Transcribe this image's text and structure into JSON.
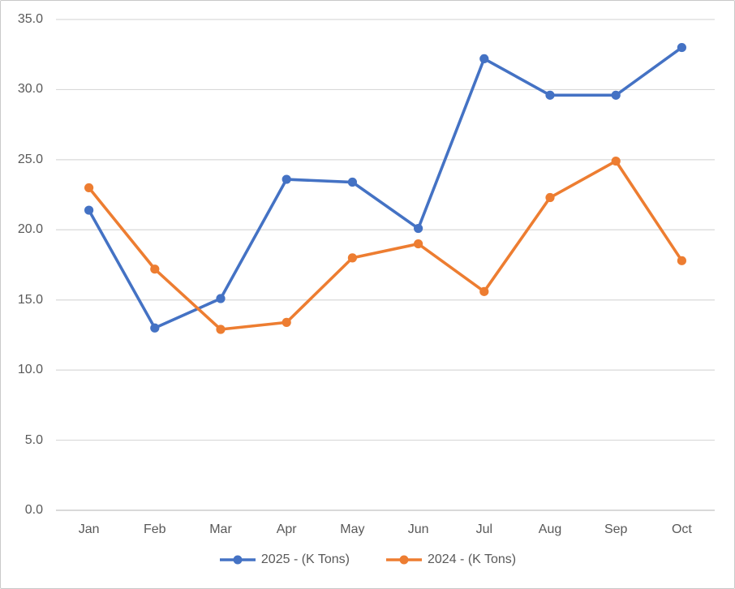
{
  "chart_data": {
    "type": "line",
    "categories": [
      "Jan",
      "Feb",
      "Mar",
      "Apr",
      "May",
      "Jun",
      "Jul",
      "Aug",
      "Sep",
      "Oct"
    ],
    "series": [
      {
        "name": "2025 - (K Tons)",
        "color": "#4472C4",
        "values": [
          21.4,
          13.0,
          15.1,
          23.6,
          23.4,
          20.1,
          32.2,
          29.6,
          29.6,
          33.0
        ]
      },
      {
        "name": "2024 - (K Tons)",
        "color": "#ED7D31",
        "values": [
          23.0,
          17.2,
          12.9,
          13.4,
          18.0,
          19.0,
          15.6,
          22.3,
          24.9,
          17.8
        ]
      }
    ],
    "title": "",
    "xlabel": "",
    "ylabel": "",
    "ylim": [
      0,
      35
    ],
    "ytick_step": 5,
    "ytick_labels": [
      "0.0",
      "5.0",
      "10.0",
      "15.0",
      "20.0",
      "25.0",
      "30.0",
      "35.0"
    ],
    "grid": true,
    "legend_position": "bottom"
  },
  "colors": {
    "grid": "#D9D9D9",
    "axis_line": "#D9D9D9",
    "tick_text": "#595959",
    "background": "#FFFFFF",
    "border": "#C9C9C9"
  }
}
